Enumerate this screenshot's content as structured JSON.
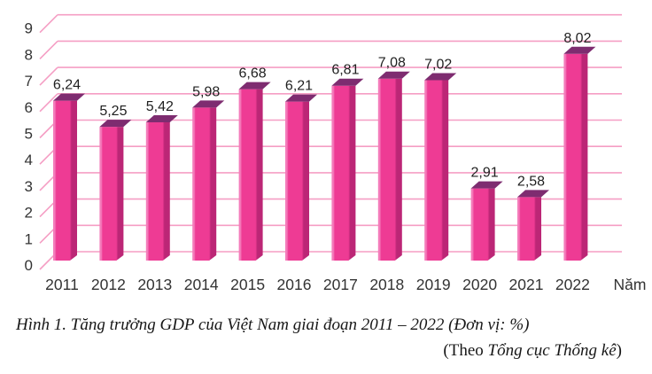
{
  "chart_data": {
    "type": "bar",
    "title": "",
    "categories": [
      "2011",
      "2012",
      "2013",
      "2014",
      "2015",
      "2016",
      "2017",
      "2018",
      "2019",
      "2020",
      "2021",
      "2022"
    ],
    "values": [
      6.24,
      5.25,
      5.42,
      5.98,
      6.68,
      6.21,
      6.81,
      7.08,
      7.02,
      2.91,
      2.58,
      8.02
    ],
    "value_labels": [
      "6,24",
      "5,25",
      "5,42",
      "5,98",
      "6,68",
      "6,21",
      "6,81",
      "7,08",
      "7,02",
      "2,91",
      "2,58",
      "8,02"
    ],
    "xlabel": "Năm",
    "ylabel": "",
    "ylim": [
      0,
      9
    ],
    "ytick_labels": [
      "0",
      "1",
      "2",
      "3",
      "4",
      "5",
      "6",
      "7",
      "8",
      "9"
    ],
    "grid": true,
    "legend": false,
    "style": "3d-bars",
    "colors": {
      "bar_front": "#EE3B94",
      "bar_front_highlight": "#F47CBB",
      "bar_front_shadow": "#BC2676",
      "bar_top": "#7E2C70",
      "gridline": "#F59EC4",
      "tick_text": "#333333",
      "value_text": "#1f1f1f"
    }
  },
  "caption": {
    "line1": "Hình 1. Tăng trưởng GDP của Việt Nam giai đoạn 2011 – 2022 (Đơn vị: %)",
    "source_prefix": "(Theo ",
    "source_name": "Tổng cục Thống kê",
    "source_suffix": ")"
  }
}
